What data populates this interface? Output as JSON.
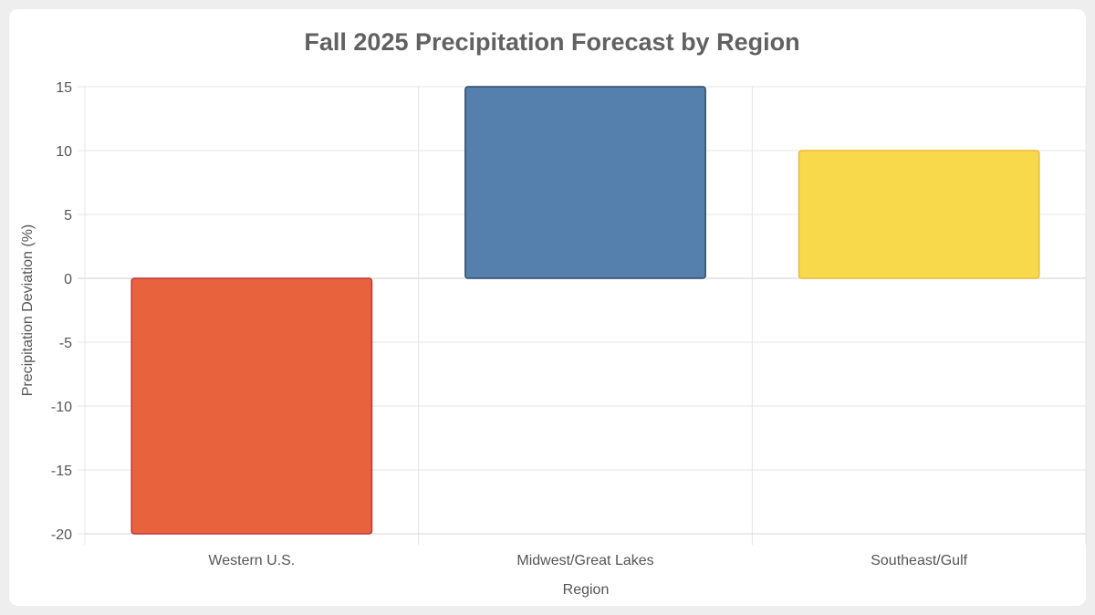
{
  "chart_data": {
    "type": "bar",
    "title": "Fall 2025 Precipitation Forecast by Region",
    "xlabel": "Region",
    "ylabel": "Precipitation Deviation (%)",
    "categories": [
      "Western U.S.",
      "Midwest/Great Lakes",
      "Southeast/Gulf"
    ],
    "values": [
      -20,
      15,
      10
    ],
    "ylim": [
      -20,
      15
    ],
    "yticks": [
      "15",
      "10",
      "5",
      "0",
      "-5",
      "-10",
      "-15",
      "-20"
    ],
    "grid": true,
    "legend": "none",
    "colors": {
      "fills": [
        "#e9623e",
        "#5580ae",
        "#f8d94b"
      ],
      "strokes": [
        "#c0343a",
        "#2f4a64",
        "#e9b93a"
      ]
    }
  }
}
